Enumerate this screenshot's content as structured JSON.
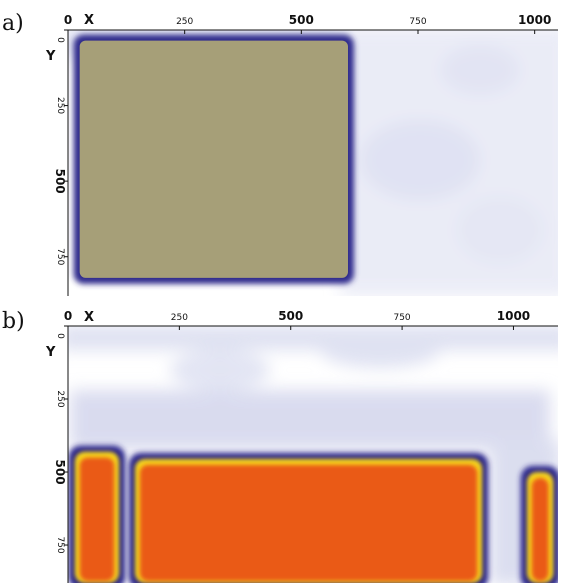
{
  "colors": {
    "panel_a_fill": "#a69f78",
    "panel_a_edge": "#2f2a8c",
    "panel_b_fill": "#ea5a14",
    "panel_b_glow": "#f6d41c",
    "panel_b_edge": "#26208a",
    "background_haze": "#d8daee"
  },
  "chart_data": [
    {
      "type": "heatmap",
      "panel_label": "a)",
      "xlabel": "X",
      "ylabel": "Y",
      "x_ticks": [
        "0",
        "250",
        "500",
        "750",
        "1000"
      ],
      "y_ticks": [
        "0",
        "250",
        "500",
        "750"
      ],
      "xlim": [
        0,
        1050
      ],
      "ylim": [
        0,
        880
      ],
      "regions": [
        {
          "x": [
            25,
            600
          ],
          "y": [
            35,
            820
          ]
        }
      ]
    },
    {
      "type": "heatmap",
      "panel_label": "b)",
      "xlabel": "X",
      "ylabel": "Y",
      "x_ticks": [
        "0",
        "250",
        "500",
        "750",
        "1000"
      ],
      "y_ticks": [
        "0",
        "250",
        "500",
        "750"
      ],
      "xlim": [
        0,
        1100
      ],
      "ylim": [
        0,
        880
      ],
      "regions": [
        {
          "x": [
            15,
            115
          ],
          "y": [
            430,
            880
          ]
        },
        {
          "x": [
            150,
            930
          ],
          "y": [
            455,
            880
          ]
        },
        {
          "x": [
            1030,
            1090
          ],
          "y": [
            500,
            880
          ]
        }
      ]
    }
  ]
}
